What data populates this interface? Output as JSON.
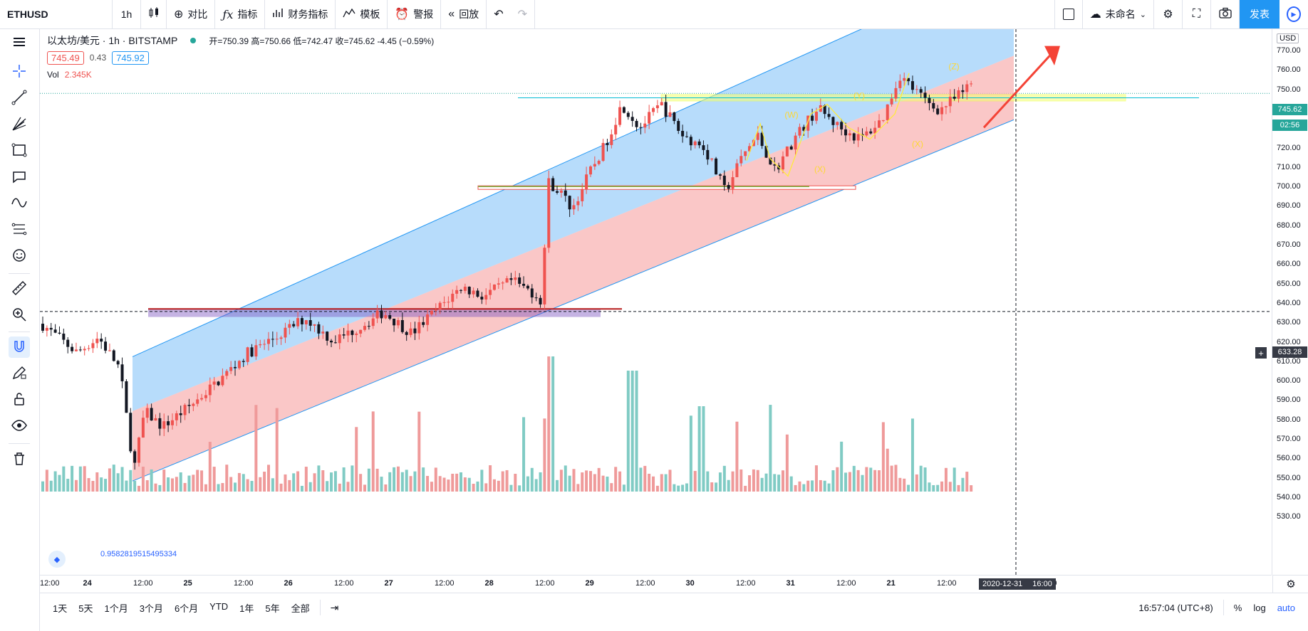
{
  "toolbar": {
    "symbol": "ETHUSD",
    "interval": "1h",
    "compare": "对比",
    "indicators": "指标",
    "financials": "财务指标",
    "templates": "模板",
    "alert": "警报",
    "replay": "回放",
    "layout_name": "未命名",
    "publish": "发表"
  },
  "legend": {
    "title": "以太坊/美元 · 1h · BITSTAMP",
    "ohlc": "开=750.39 高=750.66 低=742.47 收=745.62 -4.45 (−0.59%)",
    "bid": "745.49",
    "spread": "0.43",
    "ask": "745.92",
    "vol_label": "Vol",
    "vol_value": "2.345K"
  },
  "watermark_value": "0.9582819515495334",
  "price_axis": {
    "currency": "USD",
    "ticks": [
      "770.00",
      "760.00",
      "750.00",
      "740.00",
      "730.00",
      "720.00",
      "710.00",
      "700.00",
      "690.00",
      "680.00",
      "670.00",
      "660.00",
      "650.00",
      "640.00",
      "630.00",
      "620.00",
      "610.00",
      "600.00",
      "590.00",
      "580.00",
      "570.00",
      "560.00",
      "550.00",
      "540.00",
      "530.00"
    ],
    "last_price": "745.62",
    "countdown": "02:56",
    "crosshair_price": "633.28"
  },
  "time_axis": {
    "ticks": [
      "12:00",
      "24",
      "12:00",
      "25",
      "12:00",
      "26",
      "12:00",
      "27",
      "12:00",
      "28",
      "12:00",
      "29",
      "12:00",
      "30",
      "12:00",
      "31",
      "12:00",
      "21",
      "12:00",
      "2",
      "12:00"
    ],
    "crosshair_date": "2020-12-31",
    "crosshair_time": "16:00"
  },
  "wave_labels": [
    "(W)",
    "(X)",
    "(Y)",
    "(X)",
    "(Z)"
  ],
  "bottom": {
    "ranges": [
      "1天",
      "5天",
      "1个月",
      "3个月",
      "6个月",
      "YTD",
      "1年",
      "5年",
      "全部"
    ],
    "clock": "16:57:04 (UTC+8)",
    "percent": "%",
    "log": "log",
    "auto": "auto"
  },
  "colors": {
    "up": "#ef5350",
    "down": "#131722",
    "accent": "#2962ff",
    "vol_up": "#ef9a9a",
    "vol_down": "#80cbc4",
    "channel_upper": "#90caf9",
    "channel_lower": "#f8b4b4",
    "last_price_tag": "#26a69a"
  }
}
